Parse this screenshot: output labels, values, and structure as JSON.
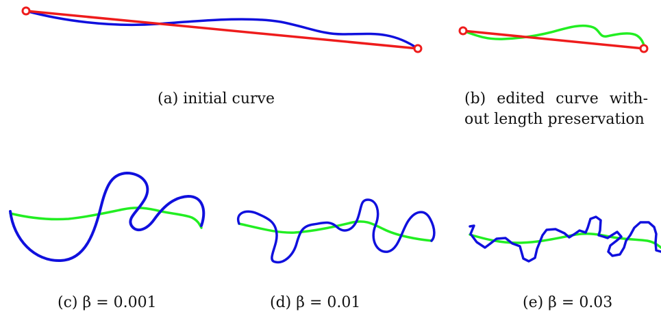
{
  "captions": {
    "a": "(a) initial curve",
    "b_line1": "(b) edited curve with-",
    "b_line2": "out length preservation",
    "c": "(c) β = 0.001",
    "d": "(d) β = 0.01",
    "e": "(e) β = 0.03"
  },
  "colors": {
    "straight_line": "#ee1c1c",
    "endpoint": "#ee1c1c",
    "initial_curve": "#1010dd",
    "edited_curve": "#22ee22",
    "preserved_curve": "#1010dd"
  }
}
